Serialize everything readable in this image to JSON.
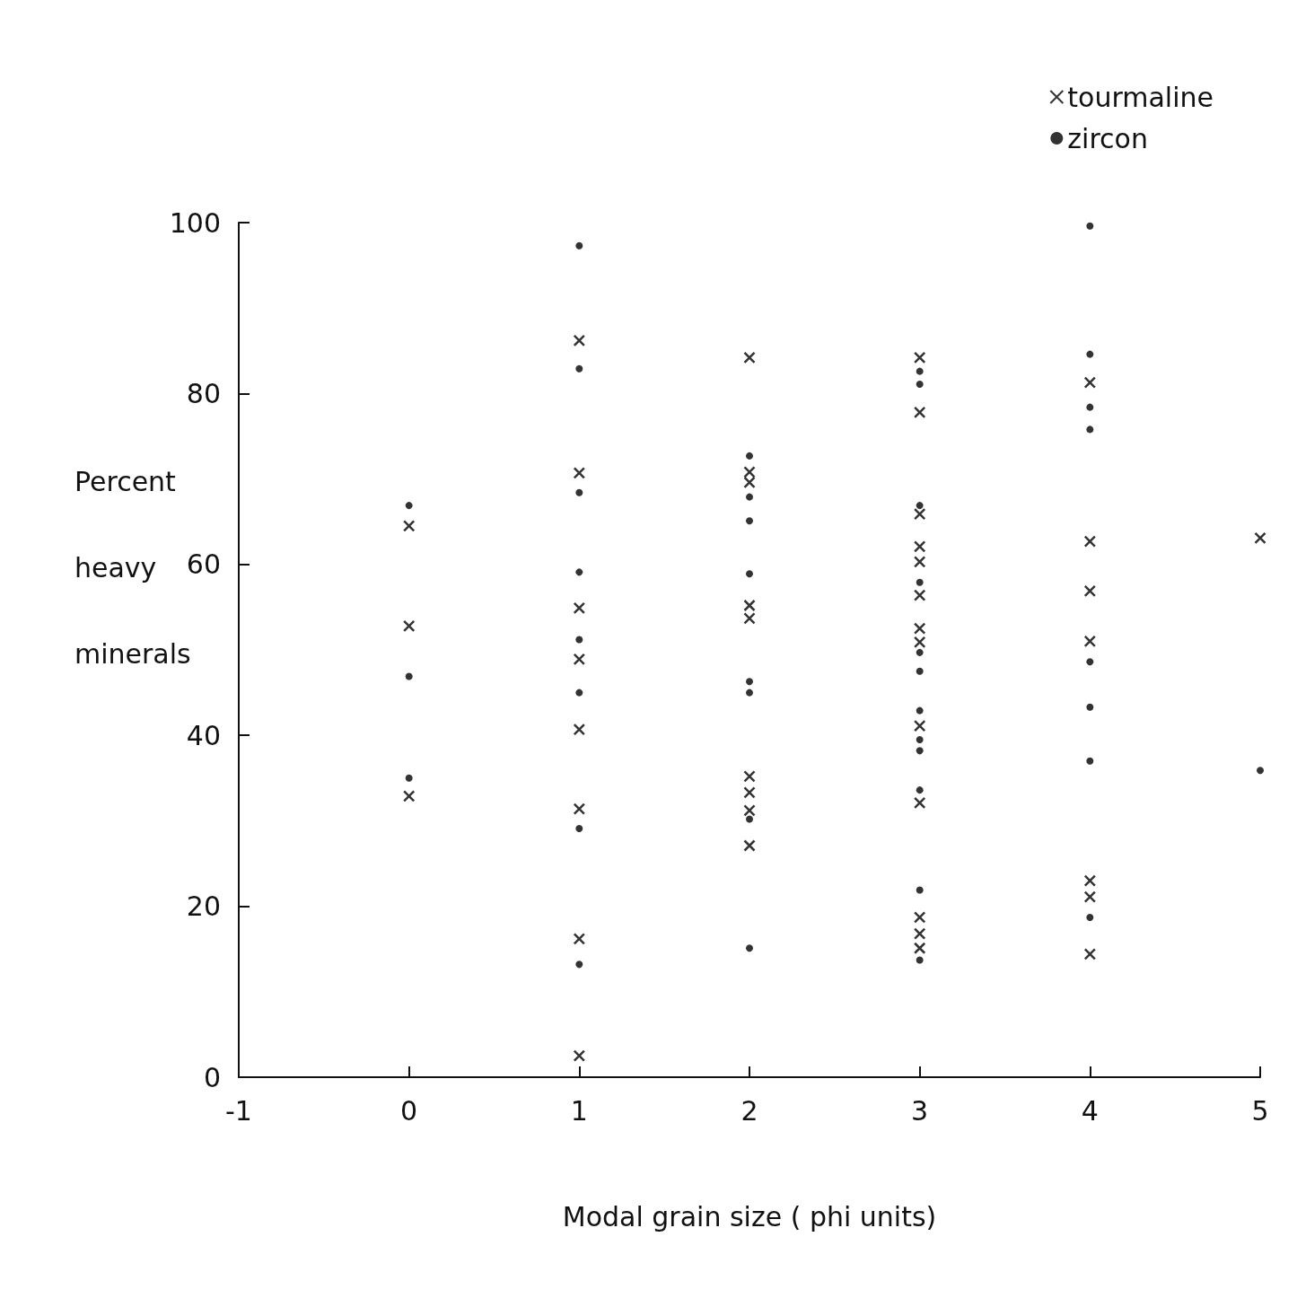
{
  "chart_data": {
    "type": "scatter",
    "xlabel": "Modal grain size ( phi units)",
    "ylabel": "Percent heavy minerals",
    "xlim": [
      -1,
      5
    ],
    "xticks": [
      -1,
      0,
      1,
      2,
      3,
      4,
      5
    ],
    "ylim": [
      0,
      100
    ],
    "yticks": [
      0,
      20,
      40,
      60,
      80,
      100
    ],
    "grid": false,
    "legend": "top right",
    "series": [
      {
        "name": "tourmaline",
        "color": "#000000",
        "marker": "cross",
        "x": [
          0,
          0,
          0,
          1,
          1,
          1,
          1,
          1,
          1,
          1,
          1,
          2,
          2,
          2,
          2,
          2,
          2,
          2,
          2,
          2,
          3,
          3,
          3,
          3,
          3,
          3,
          3,
          3,
          3,
          3,
          3,
          3,
          3,
          4,
          4,
          4,
          4,
          4,
          4,
          4,
          5
        ],
        "values": [
          64.5,
          52.8,
          32.9,
          86.2,
          70.7,
          54.9,
          48.9,
          40.7,
          31.4,
          16.2,
          2.5,
          84.2,
          70.8,
          69.6,
          55.2,
          53.7,
          35.2,
          33.3,
          31.2,
          27.1,
          84.2,
          77.8,
          65.9,
          62.1,
          60.3,
          56.4,
          52.5,
          50.9,
          41.1,
          32.1,
          18.7,
          16.8,
          15.1,
          81.3,
          62.7,
          56.9,
          51,
          23,
          21.1,
          14.4,
          63.1
        ]
      },
      {
        "name": "zircon",
        "color": "#000000",
        "marker": "circle",
        "x": [
          0,
          0,
          0,
          1,
          1,
          1,
          1,
          1,
          1,
          1,
          1,
          2,
          2,
          2,
          2,
          2,
          2,
          2,
          2,
          3,
          3,
          3,
          3,
          3,
          3,
          3,
          3,
          3,
          3,
          3,
          3,
          4,
          4,
          4,
          4,
          4,
          4,
          4,
          4,
          5
        ],
        "values": [
          66.9,
          46.9,
          35,
          97.3,
          82.9,
          68.4,
          59.1,
          51.2,
          45,
          29.1,
          13.2,
          72.7,
          67.9,
          65.1,
          58.9,
          46.3,
          45,
          30.2,
          15.1,
          82.6,
          81.1,
          66.9,
          57.9,
          49.7,
          47.5,
          42.9,
          39.5,
          38.2,
          33.6,
          21.9,
          13.7,
          99.6,
          84.6,
          78.4,
          75.8,
          48.6,
          43.3,
          37,
          18.7,
          35.9
        ]
      }
    ]
  }
}
